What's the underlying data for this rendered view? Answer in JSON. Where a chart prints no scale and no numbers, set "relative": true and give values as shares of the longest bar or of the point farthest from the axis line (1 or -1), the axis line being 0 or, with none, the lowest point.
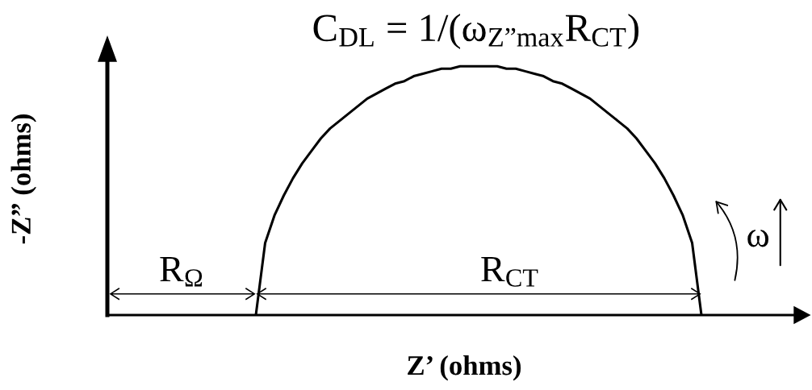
{
  "chart_data": {
    "type": "line",
    "title": "C$_{DL}$ = 1/(ω$_{Z”max}$R$_{CT}$)",
    "xlabel": "Z’ (ohms)",
    "ylabel": "-Z” (ohms)",
    "relative": true,
    "color": "#000000",
    "categories": [
      null,
      null,
      null,
      null,
      null,
      null,
      null,
      null,
      null,
      null,
      null,
      null,
      null,
      null,
      null,
      null,
      null,
      null,
      null,
      null,
      null,
      null,
      null,
      null,
      null,
      null,
      null,
      null,
      null,
      null,
      null,
      null,
      null,
      null,
      null,
      null,
      null,
      null,
      null,
      null,
      null,
      null,
      null,
      null,
      null,
      null,
      null,
      null,
      null,
      null,
      null,
      null,
      null,
      null,
      null,
      null,
      null,
      null,
      null,
      null,
      null,
      null,
      null,
      null,
      null,
      null,
      null,
      null,
      null,
      null,
      null,
      null,
      null,
      null,
      null
    ],
    "values": [
      null,
      null,
      null,
      null,
      null,
      null,
      null,
      null,
      null,
      null,
      null,
      null,
      null,
      null,
      null,
      null,
      0,
      0.29,
      0.4,
      0.48,
      0.55,
      0.61,
      0.66,
      0.71,
      0.75,
      0.78,
      0.81,
      0.84,
      0.87,
      0.89,
      0.91,
      0.93,
      0.94,
      0.96,
      0.97,
      0.98,
      0.99,
      0.99,
      1,
      1,
      1,
      1,
      1,
      0.99,
      0.99,
      0.98,
      0.97,
      0.96,
      0.94,
      0.93,
      0.91,
      0.89,
      0.87,
      0.84,
      0.81,
      0.78,
      0.75,
      0.71,
      0.66,
      0.61,
      0.55,
      0.48,
      0.4,
      0.29,
      0,
      null,
      null,
      null,
      null,
      null,
      null,
      null,
      null,
      null,
      null
    ],
    "annotations": [
      "R$_{Ω}$",
      "R$_{CT}$",
      "ω"
    ]
  }
}
